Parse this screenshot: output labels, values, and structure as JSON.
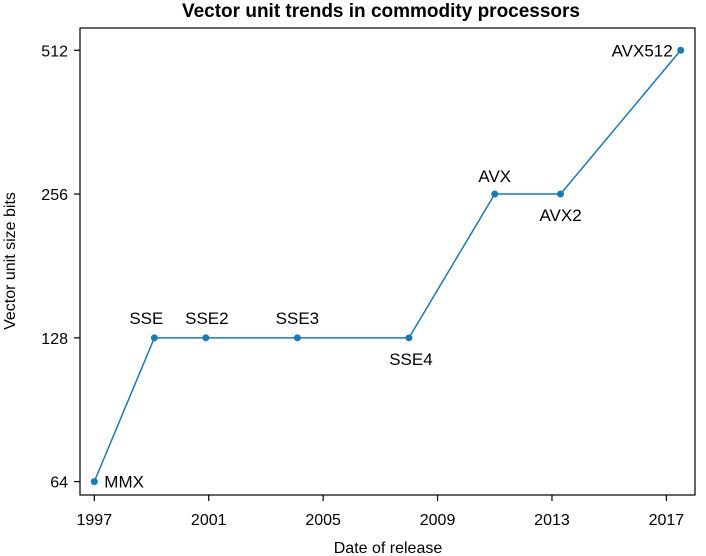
{
  "chart_data": {
    "type": "line",
    "title": "Vector unit trends in commodity processors",
    "xlabel": "Date of release",
    "ylabel": "Vector unit size bits",
    "y_scale": "log2",
    "xlim": [
      1996.5,
      2018.0
    ],
    "ylim": [
      60,
      570
    ],
    "x_ticks": [
      1997,
      2001,
      2005,
      2009,
      2013,
      2017
    ],
    "y_ticks": [
      64,
      128,
      256,
      512
    ],
    "grid": false,
    "color": "#1f77b4",
    "series": [
      {
        "points": [
          {
            "label": "MMX",
            "x": 1997.0,
            "y": 64
          },
          {
            "label": "SSE",
            "x": 1999.1,
            "y": 128
          },
          {
            "label": "SSE2",
            "x": 2000.9,
            "y": 128
          },
          {
            "label": "SSE3",
            "x": 2004.1,
            "y": 128
          },
          {
            "label": "SSE4",
            "x": 2008.0,
            "y": 128
          },
          {
            "label": "AVX",
            "x": 2011.0,
            "y": 256
          },
          {
            "label": "AVX2",
            "x": 2013.3,
            "y": 256
          },
          {
            "label": "AVX512",
            "x": 2017.5,
            "y": 512
          }
        ]
      }
    ]
  }
}
